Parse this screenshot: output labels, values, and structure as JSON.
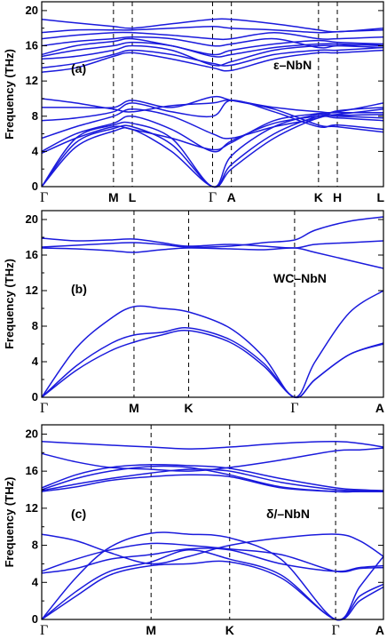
{
  "chart_data": [
    {
      "type": "line",
      "panel_label": "(a)",
      "material_label": "ε–NbN",
      "ylabel": "Frequency (THz)",
      "ylim": [
        0,
        21
      ],
      "yticks": [
        0,
        4,
        8,
        12,
        16,
        20
      ],
      "x_ticks": [
        {
          "label": "Γ",
          "pos": 0.0
        },
        {
          "label": "M",
          "pos": 0.21
        },
        {
          "label": "L",
          "pos": 0.265
        },
        {
          "label": "Γ",
          "pos": 0.5
        },
        {
          "label": "A",
          "pos": 0.555
        },
        {
          "label": "K",
          "pos": 0.81
        },
        {
          "label": "H",
          "pos": 0.865
        },
        {
          "label": "L",
          "pos": 1.0
        }
      ],
      "dashed_at": [
        0.21,
        0.265,
        0.5,
        0.555,
        0.81,
        0.865
      ],
      "series": [
        {
          "x": [
            0,
            0.1,
            0.21,
            0.265,
            0.38,
            0.5,
            0.555,
            0.68,
            0.81,
            0.865,
            1.0
          ],
          "values": [
            0,
            4.5,
            6.3,
            6.5,
            4.0,
            0,
            2.0,
            5.5,
            7.8,
            7.8,
            7.5
          ]
        },
        {
          "x": [
            0,
            0.1,
            0.21,
            0.265,
            0.38,
            0.5,
            0.555,
            0.68,
            0.81,
            0.865,
            1.0
          ],
          "values": [
            0,
            5.0,
            6.6,
            6.8,
            4.8,
            0,
            2.5,
            6.0,
            8.0,
            8.0,
            7.8
          ]
        },
        {
          "x": [
            0,
            0.1,
            0.21,
            0.265,
            0.38,
            0.5,
            0.555,
            0.68,
            0.81,
            0.865,
            1.0
          ],
          "values": [
            0,
            5.5,
            7.0,
            7.2,
            5.5,
            0,
            3.5,
            6.8,
            8.2,
            8.1,
            8.2
          ]
        },
        {
          "x": [
            0,
            0.1,
            0.21,
            0.265,
            0.38,
            0.5,
            0.555,
            0.68,
            0.81,
            0.865,
            1.0
          ],
          "values": [
            3.8,
            5.5,
            6.8,
            6.5,
            5.5,
            4.2,
            5.0,
            7.5,
            8.3,
            8.4,
            8.4
          ]
        },
        {
          "x": [
            0,
            0.1,
            0.21,
            0.265,
            0.38,
            0.5,
            0.555,
            0.68,
            0.81,
            0.865,
            1.0
          ],
          "values": [
            4.0,
            6.0,
            7.2,
            8.0,
            6.5,
            4.0,
            5.2,
            7.2,
            8.0,
            8.2,
            8.8
          ]
        },
        {
          "x": [
            0,
            0.1,
            0.21,
            0.265,
            0.38,
            0.5,
            0.555,
            0.68,
            0.81,
            0.865,
            1.0
          ],
          "values": [
            5.5,
            6.8,
            8.0,
            8.8,
            8.0,
            6.0,
            5.5,
            6.8,
            7.8,
            8.6,
            9.0
          ]
        },
        {
          "x": [
            0,
            0.1,
            0.21,
            0.265,
            0.38,
            0.5,
            0.555,
            0.68,
            0.81,
            0.865,
            1.0
          ],
          "values": [
            7.5,
            7.8,
            8.5,
            9.5,
            8.5,
            8.0,
            9.8,
            8.5,
            6.8,
            7.0,
            6.5
          ]
        },
        {
          "x": [
            0,
            0.1,
            0.21,
            0.265,
            0.38,
            0.5,
            0.555,
            0.68,
            0.81,
            0.865,
            1.0
          ],
          "values": [
            9.0,
            9.0,
            9.0,
            9.8,
            9.0,
            10.2,
            9.8,
            8.8,
            7.0,
            6.8,
            6.2
          ]
        },
        {
          "x": [
            0,
            0.1,
            0.21,
            0.265,
            0.38,
            0.5,
            0.555,
            0.68,
            0.81,
            0.865,
            1.0
          ],
          "values": [
            10.0,
            9.5,
            8.8,
            8.5,
            9.2,
            9.5,
            9.8,
            9.0,
            8.5,
            8.5,
            9.5
          ]
        },
        {
          "x": [
            0,
            0.1,
            0.21,
            0.265,
            0.38,
            0.5,
            0.555,
            0.68,
            0.81,
            0.865,
            1.0
          ],
          "values": [
            13.0,
            13.5,
            14.8,
            15.2,
            14.5,
            13.5,
            13.2,
            14.5,
            15.2,
            15.2,
            15.5
          ]
        },
        {
          "x": [
            0,
            0.1,
            0.21,
            0.265,
            0.38,
            0.5,
            0.555,
            0.68,
            0.81,
            0.865,
            1.0
          ],
          "values": [
            13.5,
            14.0,
            15.0,
            15.5,
            15.0,
            14.0,
            13.8,
            15.0,
            15.5,
            15.5,
            15.8
          ]
        },
        {
          "x": [
            0,
            0.1,
            0.21,
            0.265,
            0.38,
            0.5,
            0.555,
            0.68,
            0.81,
            0.865,
            1.0
          ],
          "values": [
            14.5,
            14.8,
            15.5,
            16.0,
            15.5,
            13.8,
            14.2,
            15.5,
            16.0,
            16.0,
            15.8
          ]
        },
        {
          "x": [
            0,
            0.1,
            0.21,
            0.265,
            0.38,
            0.5,
            0.555,
            0.68,
            0.81,
            0.865,
            1.0
          ],
          "values": [
            14.8,
            15.5,
            16.0,
            16.4,
            16.0,
            14.8,
            15.0,
            15.8,
            16.2,
            16.2,
            16.0
          ]
        },
        {
          "x": [
            0,
            0.1,
            0.21,
            0.265,
            0.38,
            0.5,
            0.555,
            0.68,
            0.81,
            0.865,
            1.0
          ],
          "values": [
            15.0,
            16.0,
            16.5,
            16.8,
            16.0,
            15.0,
            15.5,
            16.2,
            16.6,
            16.4,
            16.2
          ]
        },
        {
          "x": [
            0,
            0.1,
            0.21,
            0.265,
            0.38,
            0.5,
            0.555,
            0.68,
            0.81,
            0.865,
            1.0
          ],
          "values": [
            16.0,
            16.5,
            16.8,
            17.0,
            16.8,
            16.0,
            16.2,
            16.8,
            15.8,
            16.0,
            16.2
          ]
        },
        {
          "x": [
            0,
            0.1,
            0.21,
            0.265,
            0.38,
            0.5,
            0.555,
            0.68,
            0.81,
            0.865,
            1.0
          ],
          "values": [
            16.8,
            17.2,
            17.5,
            17.5,
            17.2,
            16.8,
            16.8,
            17.5,
            16.8,
            16.8,
            17.0
          ]
        },
        {
          "x": [
            0,
            0.1,
            0.21,
            0.265,
            0.38,
            0.5,
            0.555,
            0.68,
            0.81,
            0.865,
            1.0
          ],
          "values": [
            17.5,
            17.8,
            17.8,
            17.8,
            18.0,
            18.2,
            18.0,
            17.8,
            17.5,
            17.6,
            17.8
          ]
        },
        {
          "x": [
            0,
            0.1,
            0.21,
            0.265,
            0.38,
            0.5,
            0.555,
            0.68,
            0.81,
            0.865,
            1.0
          ],
          "values": [
            19.0,
            18.6,
            18.2,
            18.0,
            18.5,
            19.0,
            19.0,
            18.5,
            17.8,
            17.6,
            18.0
          ]
        }
      ]
    },
    {
      "type": "line",
      "panel_label": "(b)",
      "material_label": "WC–NbN",
      "ylabel": "Frequency (THz)",
      "ylim": [
        0,
        21
      ],
      "yticks": [
        0,
        4,
        8,
        12,
        16,
        20
      ],
      "x_ticks": [
        {
          "label": "Γ",
          "pos": 0.0
        },
        {
          "label": "M",
          "pos": 0.27
        },
        {
          "label": "K",
          "pos": 0.43
        },
        {
          "label": "Γ",
          "pos": 0.74
        },
        {
          "label": "A",
          "pos": 1.0
        }
      ],
      "dashed_at": [
        0.27,
        0.43,
        0.74
      ],
      "series": [
        {
          "x": [
            0,
            0.1,
            0.2,
            0.27,
            0.35,
            0.43,
            0.55,
            0.65,
            0.74,
            0.8,
            0.9,
            1.0
          ],
          "values": [
            0,
            3.0,
            5.2,
            6.2,
            7.0,
            7.5,
            6.2,
            3.5,
            0,
            2.0,
            4.8,
            6.0
          ]
        },
        {
          "x": [
            0,
            0.1,
            0.2,
            0.27,
            0.35,
            0.43,
            0.55,
            0.65,
            0.74,
            0.8,
            0.9,
            1.0
          ],
          "values": [
            0,
            3.5,
            6.0,
            7.0,
            7.3,
            7.8,
            6.5,
            3.8,
            0,
            2.0,
            4.8,
            6.1
          ]
        },
        {
          "x": [
            0,
            0.1,
            0.2,
            0.27,
            0.35,
            0.43,
            0.55,
            0.65,
            0.74,
            0.8,
            0.9,
            1.0
          ],
          "values": [
            0,
            5.5,
            8.8,
            10.2,
            10.0,
            9.6,
            7.8,
            4.5,
            0,
            4.0,
            9.5,
            12.0
          ]
        },
        {
          "x": [
            0,
            0.1,
            0.2,
            0.27,
            0.35,
            0.43,
            0.55,
            0.65,
            0.74,
            0.8,
            0.9,
            1.0
          ],
          "values": [
            16.8,
            16.7,
            16.5,
            16.3,
            16.6,
            16.8,
            16.7,
            16.6,
            16.8,
            16.3,
            15.4,
            14.5
          ]
        },
        {
          "x": [
            0,
            0.1,
            0.2,
            0.27,
            0.35,
            0.43,
            0.55,
            0.65,
            0.74,
            0.8,
            0.9,
            1.0
          ],
          "values": [
            16.9,
            17.1,
            17.3,
            17.4,
            17.2,
            16.9,
            17.0,
            17.4,
            17.7,
            18.8,
            19.8,
            20.3
          ]
        },
        {
          "x": [
            0,
            0.1,
            0.2,
            0.27,
            0.35,
            0.43,
            0.55,
            0.65,
            0.74,
            0.8,
            0.9,
            1.0
          ],
          "values": [
            17.9,
            17.6,
            17.7,
            17.8,
            17.4,
            17.0,
            17.2,
            17.0,
            16.8,
            17.2,
            17.4,
            17.6
          ]
        }
      ]
    },
    {
      "type": "line",
      "panel_label": "(c)",
      "material_label": "δ/–NbN",
      "ylabel": "Frequency (THz)",
      "ylim": [
        0,
        21
      ],
      "yticks": [
        0,
        4,
        8,
        12,
        16,
        20
      ],
      "x_ticks": [
        {
          "label": "Γ",
          "pos": 0.0
        },
        {
          "label": "M",
          "pos": 0.32
        },
        {
          "label": "K",
          "pos": 0.55
        },
        {
          "label": "Γ",
          "pos": 0.86
        },
        {
          "label": "A",
          "pos": 1.0
        }
      ],
      "dashed_at": [
        0.32,
        0.55,
        0.86
      ],
      "series": [
        {
          "x": [
            0,
            0.1,
            0.2,
            0.32,
            0.43,
            0.55,
            0.7,
            0.86,
            0.93,
            1.0
          ],
          "values": [
            0,
            2.5,
            4.8,
            5.8,
            6.0,
            6.2,
            4.5,
            0,
            2.0,
            3.5
          ]
        },
        {
          "x": [
            0,
            0.1,
            0.2,
            0.32,
            0.43,
            0.55,
            0.7,
            0.86,
            0.93,
            1.0
          ],
          "values": [
            0,
            3.0,
            5.2,
            6.2,
            7.5,
            6.5,
            4.8,
            0,
            2.5,
            3.8
          ]
        },
        {
          "x": [
            0,
            0.1,
            0.2,
            0.32,
            0.43,
            0.55,
            0.7,
            0.86,
            0.93,
            1.0
          ],
          "values": [
            0,
            4.5,
            7.8,
            9.3,
            9.2,
            8.8,
            6.5,
            0,
            3.5,
            6.8
          ]
        },
        {
          "x": [
            0,
            0.1,
            0.2,
            0.32,
            0.43,
            0.55,
            0.7,
            0.86,
            0.93,
            1.0
          ],
          "values": [
            5.0,
            5.5,
            6.5,
            7.0,
            7.6,
            7.5,
            6.0,
            5.2,
            5.6,
            5.8
          ]
        },
        {
          "x": [
            0,
            0.1,
            0.2,
            0.32,
            0.43,
            0.55,
            0.7,
            0.86,
            0.93,
            1.0
          ],
          "values": [
            5.2,
            6.5,
            7.5,
            8.2,
            8.0,
            7.6,
            7.0,
            5.2,
            5.5,
            5.6
          ]
        },
        {
          "x": [
            0,
            0.1,
            0.2,
            0.32,
            0.43,
            0.55,
            0.7,
            0.86,
            0.93,
            1.0
          ],
          "values": [
            9.2,
            8.5,
            7.2,
            6.0,
            6.8,
            8.0,
            8.8,
            9.2,
            8.5,
            6.8
          ]
        },
        {
          "x": [
            0,
            0.1,
            0.2,
            0.32,
            0.43,
            0.55,
            0.7,
            0.86,
            0.93,
            1.0
          ],
          "values": [
            13.8,
            14.3,
            15.0,
            15.4,
            15.6,
            15.4,
            14.2,
            13.8,
            13.8,
            13.8
          ]
        },
        {
          "x": [
            0,
            0.1,
            0.2,
            0.32,
            0.43,
            0.55,
            0.7,
            0.86,
            0.93,
            1.0
          ],
          "values": [
            13.9,
            14.6,
            15.2,
            15.8,
            16.2,
            16.0,
            14.8,
            14.0,
            13.9,
            13.8
          ]
        },
        {
          "x": [
            0,
            0.1,
            0.2,
            0.32,
            0.43,
            0.55,
            0.7,
            0.86,
            0.93,
            1.0
          ],
          "values": [
            14.0,
            15.2,
            16.0,
            16.5,
            16.4,
            15.6,
            14.3,
            13.8,
            13.8,
            13.8
          ]
        },
        {
          "x": [
            0,
            0.1,
            0.2,
            0.32,
            0.43,
            0.55,
            0.7,
            0.86,
            0.93,
            1.0
          ],
          "values": [
            14.2,
            15.6,
            16.4,
            16.7,
            16.6,
            16.3,
            15.2,
            14.2,
            14.0,
            13.9
          ]
        },
        {
          "x": [
            0,
            0.1,
            0.2,
            0.32,
            0.43,
            0.55,
            0.7,
            0.86,
            0.93,
            1.0
          ],
          "values": [
            17.9,
            17.0,
            16.4,
            16.2,
            16.0,
            16.4,
            17.2,
            18.2,
            18.3,
            18.5
          ]
        },
        {
          "x": [
            0,
            0.1,
            0.2,
            0.32,
            0.43,
            0.55,
            0.7,
            0.86,
            0.93,
            1.0
          ],
          "values": [
            19.2,
            19.0,
            18.8,
            18.6,
            18.4,
            18.6,
            19.0,
            19.2,
            19.0,
            18.6
          ]
        }
      ]
    }
  ],
  "colors": {
    "band": "#1a1adc",
    "axis": "#000000"
  }
}
